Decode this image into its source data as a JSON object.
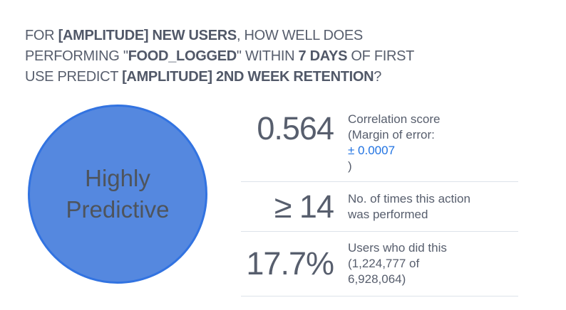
{
  "question": {
    "lines": [
      {
        "segments": [
          {
            "t": "FOR "
          },
          {
            "t": "[AMPLITUDE] NEW USERS",
            "bold": true
          },
          {
            "t": ", HOW WELL DOES"
          }
        ]
      },
      {
        "segments": [
          {
            "t": "PERFORMING \""
          },
          {
            "t": "FOOD_LOGGED",
            "bold": true
          },
          {
            "t": "\" WITHIN "
          },
          {
            "t": "7 DAYS",
            "bold": true
          },
          {
            "t": " OF FIRST"
          }
        ]
      },
      {
        "segments": [
          {
            "t": "USE PREDICT "
          },
          {
            "t": "[AMPLITUDE] 2ND WEEK RETENTION",
            "bold": true
          },
          {
            "t": "?"
          }
        ]
      }
    ]
  },
  "badge": {
    "line1": "Highly",
    "line2": "Predictive",
    "fill_color": "#5588DF",
    "border_color": "#3273E1",
    "text_color": "#4E545C"
  },
  "stats": {
    "rows": [
      {
        "value": "0.564",
        "label_line1": "Correlation score",
        "label_line2": "(Margin of error:",
        "link_text": "± 0.0007",
        "label_line4": ")"
      },
      {
        "value": "≥ 14",
        "label_line1": "No. of times this action",
        "label_line2": "was performed"
      },
      {
        "value": "17.7%",
        "label_line1": "Users who did this",
        "label_line2": "(1,224,777 of",
        "label_line3": "6,928,064)"
      }
    ]
  },
  "colors": {
    "text": "#575E6D",
    "link": "#2173E2",
    "divider": "#DDE3EA",
    "background": "#FFFFFF"
  }
}
